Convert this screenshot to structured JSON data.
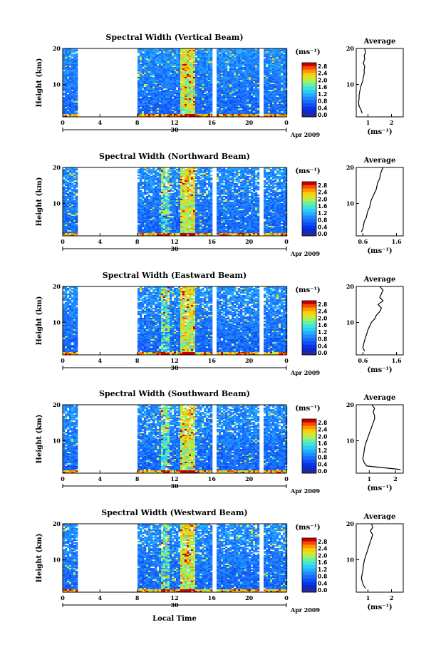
{
  "chart_data": [
    {
      "type": "heatmap",
      "title": "Spectral Width (Vertical Beam)",
      "ylabel": "Height (km)",
      "x_ticks": [
        "0",
        "4",
        "8",
        "12",
        "16",
        "20",
        "0"
      ],
      "date_label": "30",
      "month_label": "Apr 2009",
      "y_ticks": [
        "20",
        "10"
      ],
      "ylim": [
        1,
        20
      ],
      "colorbar": {
        "unit": "(ms⁻¹)",
        "ticks": [
          "2.8",
          "2.4",
          "2.0",
          "1.6",
          "1.2",
          "0.8",
          "0.4",
          "0.0"
        ],
        "range": [
          0.0,
          3.0
        ]
      },
      "data_gaps_hours": [
        [
          1.5,
          8.0
        ],
        [
          16.0,
          16.5
        ],
        [
          21.0,
          21.5
        ]
      ],
      "average_profile": {
        "title": "Average",
        "xlabel": "(ms⁻¹)",
        "x_ticks": [
          "1",
          "2"
        ],
        "y_ticks": [
          "20",
          "10"
        ],
        "xlim": [
          0.5,
          2.5
        ],
        "height_km": [
          2,
          3,
          4,
          5,
          6,
          7,
          8,
          9,
          10,
          11,
          12,
          13,
          14,
          15,
          16,
          17,
          18,
          19,
          20
        ],
        "values": [
          0.75,
          0.7,
          0.62,
          0.6,
          0.62,
          0.62,
          0.65,
          0.68,
          0.72,
          0.78,
          0.8,
          0.84,
          0.84,
          0.86,
          0.8,
          0.86,
          0.84,
          0.9,
          0.85
        ]
      }
    },
    {
      "type": "heatmap",
      "title": "Spectral Width (Northward Beam)",
      "ylabel": "Height (km)",
      "x_ticks": [
        "0",
        "4",
        "8",
        "12",
        "16",
        "20",
        "0"
      ],
      "date_label": "30",
      "month_label": "Apr 2009",
      "y_ticks": [
        "20",
        "10"
      ],
      "ylim": [
        1,
        20
      ],
      "colorbar": {
        "unit": "(ms⁻¹)",
        "ticks": [
          "2.8",
          "2.4",
          "2.0",
          "1.6",
          "1.2",
          "0.8",
          "0.4",
          "0.0"
        ],
        "range": [
          0.0,
          3.0
        ]
      },
      "data_gaps_hours": [
        [
          1.5,
          8.0
        ],
        [
          16.0,
          16.5
        ],
        [
          21.0,
          21.5
        ]
      ],
      "average_profile": {
        "title": "Average",
        "xlabel": "(ms⁻¹)",
        "x_ticks": [
          "0.6",
          "1.6"
        ],
        "y_ticks": [
          "20",
          "10"
        ],
        "xlim": [
          0.4,
          1.8
        ],
        "height_km": [
          2,
          3,
          4,
          5,
          6,
          7,
          8,
          9,
          10,
          11,
          12,
          13,
          14,
          15,
          16,
          17,
          18,
          19,
          20
        ],
        "values": [
          0.55,
          0.6,
          0.62,
          0.64,
          0.7,
          0.72,
          0.75,
          0.8,
          0.82,
          0.85,
          0.9,
          0.95,
          1.0,
          1.02,
          1.05,
          1.1,
          1.12,
          1.15,
          1.2
        ]
      }
    },
    {
      "type": "heatmap",
      "title": "Spectral Width (Eastward Beam)",
      "ylabel": "Height (km)",
      "x_ticks": [
        "0",
        "4",
        "8",
        "12",
        "16",
        "20",
        "0"
      ],
      "date_label": "30",
      "month_label": "Apr 2009",
      "y_ticks": [
        "20",
        "10"
      ],
      "ylim": [
        1,
        20
      ],
      "colorbar": {
        "unit": "(ms⁻¹)",
        "ticks": [
          "2.8",
          "2.4",
          "2.0",
          "1.6",
          "1.2",
          "0.8",
          "0.4",
          "0.0"
        ],
        "range": [
          0.0,
          3.0
        ]
      },
      "data_gaps_hours": [
        [
          1.5,
          8.0
        ],
        [
          16.0,
          16.5
        ],
        [
          21.0,
          21.5
        ]
      ],
      "average_profile": {
        "title": "Average",
        "xlabel": "(ms⁻¹)",
        "x_ticks": [
          "0.6",
          "1.6"
        ],
        "y_ticks": [
          "20",
          "10"
        ],
        "xlim": [
          0.4,
          1.8
        ],
        "height_km": [
          2,
          3,
          4,
          5,
          6,
          7,
          8,
          9,
          10,
          11,
          12,
          13,
          14,
          15,
          16,
          17,
          18,
          19,
          20
        ],
        "values": [
          0.65,
          0.6,
          0.62,
          0.65,
          0.68,
          0.72,
          0.75,
          0.8,
          0.85,
          0.95,
          1.0,
          1.1,
          1.15,
          1.05,
          1.2,
          1.1,
          1.15,
          1.2,
          1.1
        ]
      }
    },
    {
      "type": "heatmap",
      "title": "Spectral Width (Southward Beam)",
      "ylabel": "Height (km)",
      "x_ticks": [
        "0",
        "4",
        "8",
        "12",
        "16",
        "20",
        "0"
      ],
      "date_label": "30",
      "month_label": "Apr 2009",
      "y_ticks": [
        "20",
        "10"
      ],
      "ylim": [
        1,
        20
      ],
      "colorbar": {
        "unit": "(ms⁻¹)",
        "ticks": [
          "2.8",
          "2.4",
          "2.0",
          "1.6",
          "1.2",
          "0.8",
          "0.4",
          "0.0"
        ],
        "range": [
          0.0,
          3.0
        ]
      },
      "data_gaps_hours": [
        [
          1.5,
          8.0
        ],
        [
          16.0,
          16.5
        ],
        [
          21.0,
          21.5
        ]
      ],
      "average_profile": {
        "title": "Average",
        "xlabel": "(ms⁻¹)",
        "x_ticks": [
          "1",
          "2"
        ],
        "y_ticks": [
          "20",
          "10"
        ],
        "xlim": [
          0.5,
          2.3
        ],
        "height_km": [
          2,
          3,
          4,
          5,
          6,
          7,
          8,
          9,
          10,
          11,
          12,
          13,
          14,
          15,
          16,
          17,
          18,
          19,
          20
        ],
        "values": [
          2.2,
          0.9,
          0.8,
          0.75,
          0.78,
          0.8,
          0.82,
          0.85,
          0.9,
          0.95,
          1.0,
          1.05,
          1.1,
          1.15,
          1.2,
          1.2,
          1.15,
          1.2,
          1.1
        ]
      }
    },
    {
      "type": "heatmap",
      "title": "Spectral Width (Westward Beam)",
      "ylabel": "Height (km)",
      "xlabel": "Local Time",
      "x_ticks": [
        "0",
        "4",
        "8",
        "12",
        "16",
        "20",
        "0"
      ],
      "date_label": "30",
      "month_label": "Apr 2009",
      "y_ticks": [
        "20",
        "10"
      ],
      "ylim": [
        1,
        20
      ],
      "colorbar": {
        "unit": "(ms⁻¹)",
        "ticks": [
          "2.8",
          "2.4",
          "2.0",
          "1.6",
          "1.2",
          "0.8",
          "0.4",
          "0.0"
        ],
        "range": [
          0.0,
          3.0
        ]
      },
      "data_gaps_hours": [
        [
          1.5,
          8.0
        ],
        [
          16.0,
          16.5
        ],
        [
          21.0,
          21.5
        ]
      ],
      "average_profile": {
        "title": "Average",
        "xlabel": "(ms⁻¹)",
        "x_ticks": [
          "1",
          "2"
        ],
        "y_ticks": [
          "20",
          "10"
        ],
        "xlim": [
          0.5,
          2.5
        ],
        "height_km": [
          2,
          3,
          4,
          5,
          6,
          7,
          8,
          9,
          10,
          11,
          12,
          13,
          14,
          15,
          16,
          17,
          18,
          19,
          20
        ],
        "values": [
          0.9,
          0.8,
          0.75,
          0.72,
          0.75,
          0.78,
          0.8,
          0.82,
          0.85,
          0.9,
          0.95,
          1.0,
          1.05,
          1.1,
          1.15,
          1.2,
          1.1,
          1.2,
          1.15
        ]
      }
    }
  ]
}
